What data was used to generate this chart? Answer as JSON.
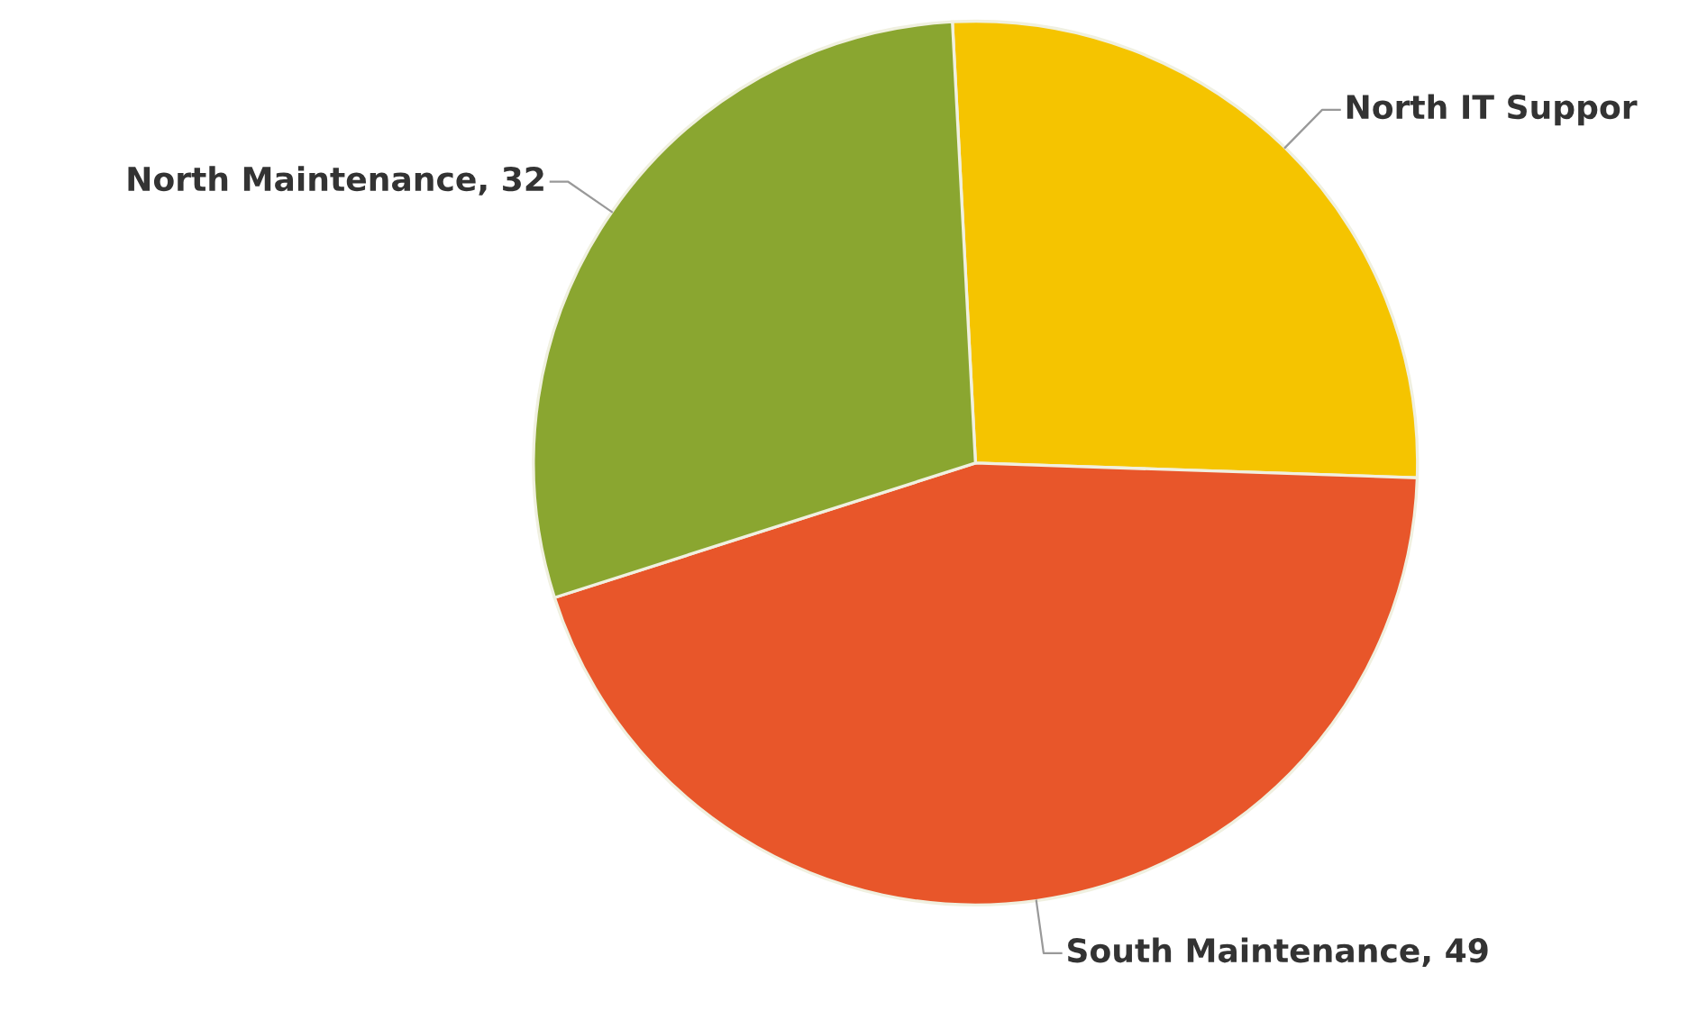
{
  "chart_data": {
    "type": "pie",
    "categories": [
      "North IT Suppor",
      "South Maintenance",
      "North Maintenance"
    ],
    "values": [
      29,
      49,
      32
    ],
    "value_labels": [
      null,
      "49",
      "32"
    ],
    "colors": [
      "#f5c400",
      "#e8562a",
      "#8aa630"
    ]
  }
}
